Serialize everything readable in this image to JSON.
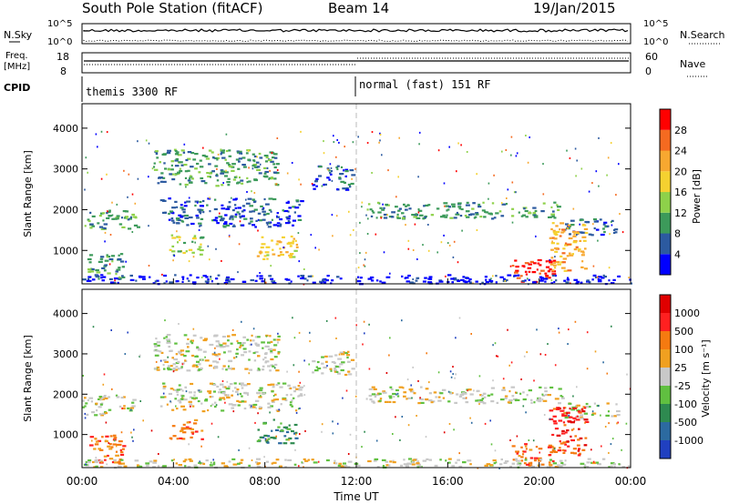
{
  "header": {
    "station": "South Pole Station (fitACF)",
    "beam": "Beam 14",
    "date": "19/Jan/2015"
  },
  "top_panels": {
    "nsky_label": "N.Sky",
    "nsearch_label": "N.Search",
    "noise_ticks": [
      "10^5",
      "10^0"
    ],
    "freq_label_line1": "Freq.",
    "freq_label_line2": "[MHz]",
    "freq_ticks": [
      "18",
      "8"
    ],
    "nave_ticks": [
      "60",
      "0"
    ],
    "nave_label": "Nave",
    "cpid_label": "CPID",
    "cpid_segments": [
      {
        "label": "themis 3300 RF",
        "start_hour": 0,
        "end_hour": 12
      },
      {
        "label": "normal (fast) 151 RF",
        "start_hour": 12,
        "end_hour": 24
      }
    ]
  },
  "chart_data": [
    {
      "type": "heatmap",
      "name": "power",
      "ylabel": "Slant Range [km]",
      "xlabel": "",
      "ylim": [
        180,
        4600
      ],
      "xlim": [
        0,
        24
      ],
      "yticks": [
        "1000",
        "2000",
        "3000",
        "4000"
      ],
      "colorbar_label": "Power [dB]",
      "colorbar_ticks": [
        "4",
        "8",
        "12",
        "16",
        "20",
        "24",
        "28"
      ],
      "colorbar_colors": [
        "#0000ff",
        "#2c5aa0",
        "#3c9a5a",
        "#8ed14a",
        "#f5d130",
        "#f7a830",
        "#f56a20",
        "#ff0000"
      ],
      "echo_regions": [
        {
          "h0": 3.1,
          "h1": 8.6,
          "r0": 2600,
          "r1": 3500,
          "level": 2
        },
        {
          "h0": 10.0,
          "h1": 11.8,
          "r0": 2500,
          "r1": 3100,
          "level": 1
        },
        {
          "h0": 0.0,
          "h1": 2.4,
          "r0": 1500,
          "r1": 2000,
          "level": 2
        },
        {
          "h0": 3.4,
          "h1": 9.6,
          "r0": 1600,
          "r1": 2300,
          "level": 1
        },
        {
          "h0": 3.8,
          "h1": 5.2,
          "r0": 900,
          "r1": 1400,
          "level": 3
        },
        {
          "h0": 7.6,
          "h1": 9.4,
          "r0": 800,
          "r1": 1400,
          "level": 4
        },
        {
          "h0": 0.2,
          "h1": 1.8,
          "r0": 300,
          "r1": 1000,
          "level": 2
        },
        {
          "h0": 12.4,
          "h1": 21.0,
          "r0": 1800,
          "r1": 2200,
          "level": 2
        },
        {
          "h0": 21.0,
          "h1": 23.4,
          "r0": 1400,
          "r1": 1800,
          "level": 1
        },
        {
          "h0": 18.8,
          "h1": 20.6,
          "r0": 250,
          "r1": 800,
          "level": 7
        },
        {
          "h0": 20.4,
          "h1": 22.0,
          "r0": 500,
          "r1": 1700,
          "level": 5
        },
        {
          "h0": 0.0,
          "h1": 24.0,
          "r0": 200,
          "r1": 420,
          "level": 0
        }
      ]
    },
    {
      "type": "heatmap",
      "name": "velocity",
      "ylabel": "Slant Range [km]",
      "xlabel": "Time UT",
      "ylim": [
        180,
        4600
      ],
      "xlim": [
        0,
        24
      ],
      "yticks": [
        "1000",
        "2000",
        "3000",
        "4000"
      ],
      "xticks": [
        "00:00",
        "04:00",
        "08:00",
        "12:00",
        "16:00",
        "20:00",
        "00:00"
      ],
      "colorbar_label": "Velocity [m s⁻¹]",
      "colorbar_ticks": [
        "1000",
        "500",
        "100",
        "25",
        "-25",
        "-100",
        "-500",
        "-1000"
      ],
      "colorbar_colors": [
        "#2040c0",
        "#2c6aa0",
        "#2e8a50",
        "#60c040",
        "#c8c8c8",
        "#f0a020",
        "#f57a10",
        "#ff2020",
        "#e00000"
      ],
      "echo_regions": [
        {
          "h0": 3.1,
          "h1": 8.6,
          "r0": 2600,
          "r1": 3500,
          "level": 4
        },
        {
          "h0": 10.0,
          "h1": 11.8,
          "r0": 2500,
          "r1": 3100,
          "level": 4
        },
        {
          "h0": 0.0,
          "h1": 2.4,
          "r0": 1500,
          "r1": 2000,
          "level": 4
        },
        {
          "h0": 3.4,
          "h1": 9.6,
          "r0": 1600,
          "r1": 2300,
          "level": 4
        },
        {
          "h0": 3.8,
          "h1": 5.2,
          "r0": 900,
          "r1": 1400,
          "level": 6
        },
        {
          "h0": 7.6,
          "h1": 9.4,
          "r0": 800,
          "r1": 1400,
          "level": 2
        },
        {
          "h0": 0.2,
          "h1": 1.8,
          "r0": 300,
          "r1": 1000,
          "level": 6
        },
        {
          "h0": 12.4,
          "h1": 21.0,
          "r0": 1800,
          "r1": 2200,
          "level": 4
        },
        {
          "h0": 21.0,
          "h1": 23.4,
          "r0": 1400,
          "r1": 1800,
          "level": 4
        },
        {
          "h0": 18.8,
          "h1": 20.6,
          "r0": 250,
          "r1": 800,
          "level": 6
        },
        {
          "h0": 20.4,
          "h1": 22.0,
          "r0": 500,
          "r1": 1700,
          "level": 7
        },
        {
          "h0": 0.0,
          "h1": 24.0,
          "r0": 200,
          "r1": 420,
          "level": 4
        }
      ]
    }
  ]
}
